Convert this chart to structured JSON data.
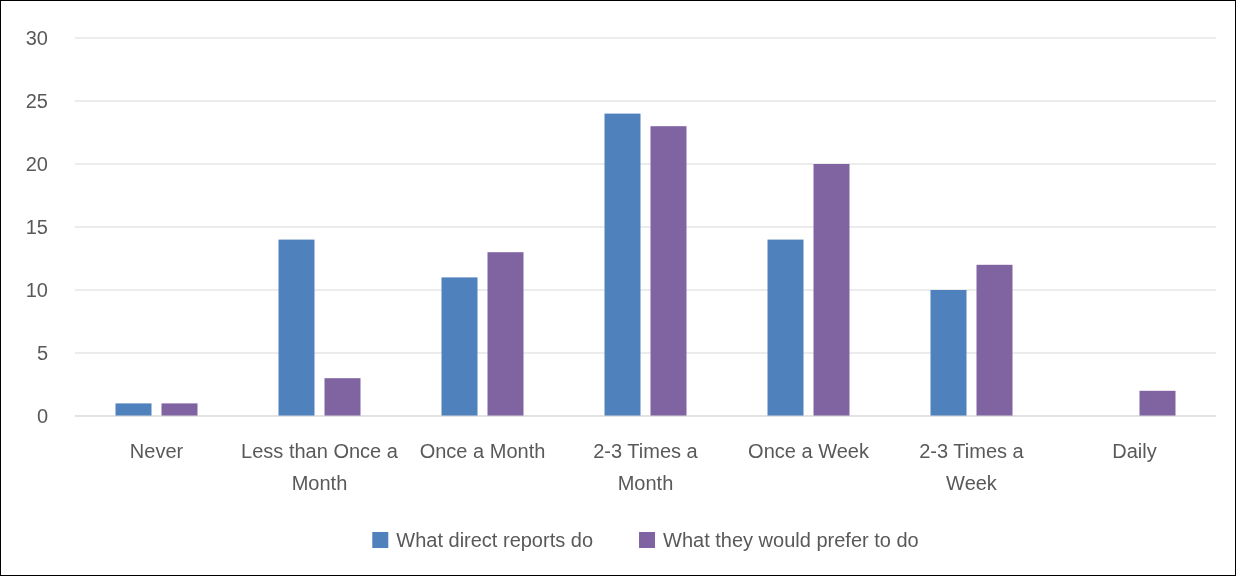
{
  "chart_data": {
    "type": "bar",
    "categories": [
      "Never",
      "Less than Once a Month",
      "Once a Month",
      "2-3 Times a Month",
      "Once a Week",
      "2-3 Times a Week",
      "Daily"
    ],
    "series": [
      {
        "name": "What direct reports do",
        "color": "#4f81bd",
        "values": [
          1,
          14,
          11,
          24,
          14,
          10,
          0
        ]
      },
      {
        "name": "What they would prefer to do",
        "color": "#8064a2",
        "values": [
          1,
          3,
          13,
          23,
          20,
          12,
          2
        ]
      }
    ],
    "ylim": [
      0,
      30
    ],
    "yticks": [
      0,
      5,
      10,
      15,
      20,
      25,
      30
    ],
    "grid": "y",
    "legend": "bottom"
  }
}
